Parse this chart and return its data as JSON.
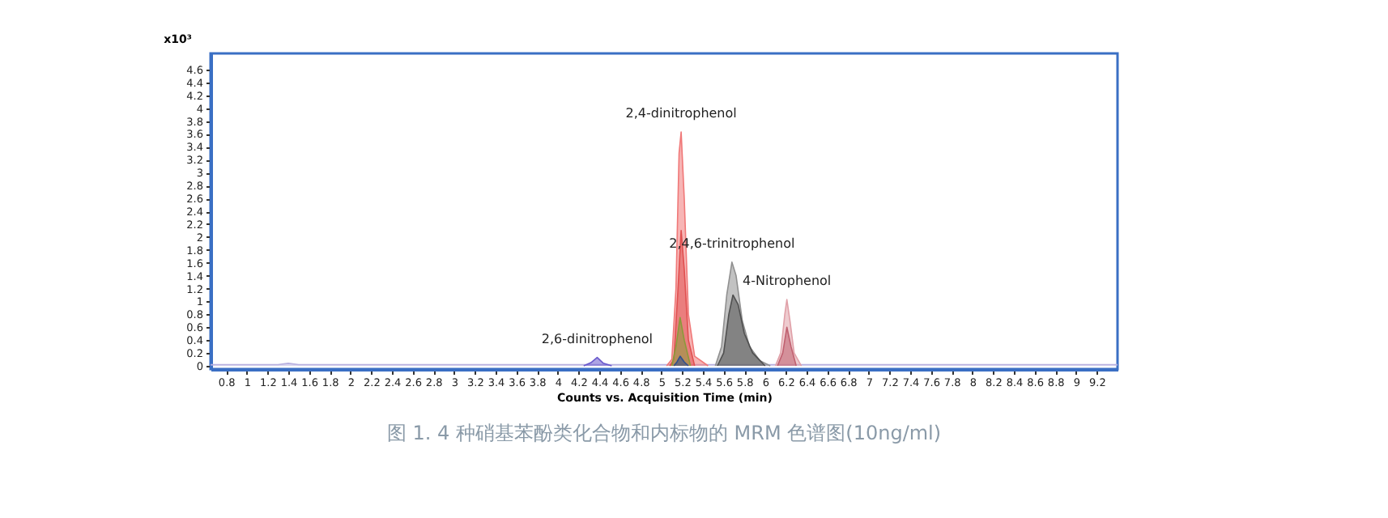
{
  "chart_data": {
    "type": "area",
    "title": "图 1. 4 种硝基苯酚类化合物和内标物的 MRM 色谱图(10ng/ml)",
    "xlabel": "Counts vs. Acquisition Time (min)",
    "ylabel": "x10³",
    "xlim": [
      0.65,
      9.4
    ],
    "xticks": [
      0.8,
      1,
      1.2,
      1.4,
      1.6,
      1.8,
      2,
      2.2,
      2.4,
      2.6,
      2.8,
      3,
      3.2,
      3.4,
      3.6,
      3.8,
      4,
      4.2,
      4.4,
      4.6,
      4.8,
      5,
      5.2,
      5.4,
      5.6,
      5.8,
      6,
      6.2,
      6.4,
      6.6,
      6.8,
      7,
      7.2,
      7.4,
      7.6,
      7.8,
      8,
      8.2,
      8.4,
      8.6,
      8.8,
      9,
      9.2
    ],
    "ylim": [
      -0.05,
      4.85
    ],
    "yticks": [
      0,
      0.2,
      0.4,
      0.6,
      0.8,
      1,
      1.2,
      1.4,
      1.6,
      1.8,
      2,
      2.2,
      2.4,
      2.6,
      2.8,
      3,
      3.2,
      3.4,
      3.6,
      3.8,
      4,
      4.2,
      4.4,
      4.6
    ],
    "grid": false,
    "series": [
      {
        "color": "#b8b0e0",
        "x": [
          0.65,
          1.3,
          1.4,
          1.5,
          4.0,
          6.5,
          9.4
        ],
        "values": [
          0.02,
          0.02,
          0.04,
          0.02,
          0.02,
          0.02,
          0.02
        ]
      },
      {
        "color": "#6a5acd",
        "x": [
          4.25,
          4.32,
          4.38,
          4.44,
          4.52
        ],
        "values": [
          0,
          0.05,
          0.13,
          0.04,
          0
        ]
      },
      {
        "color": "#f07878",
        "x": [
          5.05,
          5.1,
          5.14,
          5.17,
          5.19,
          5.22,
          5.26,
          5.32,
          5.45
        ],
        "values": [
          0,
          0.1,
          1.2,
          3.3,
          3.63,
          2.6,
          0.8,
          0.15,
          0
        ]
      },
      {
        "color": "#e05050",
        "x": [
          5.08,
          5.12,
          5.16,
          5.19,
          5.22,
          5.26,
          5.32
        ],
        "values": [
          0,
          0.1,
          1.2,
          2.1,
          1.5,
          0.4,
          0
        ]
      },
      {
        "color": "#8a9a3a",
        "x": [
          5.1,
          5.14,
          5.18,
          5.22,
          5.28
        ],
        "values": [
          0,
          0.3,
          0.75,
          0.4,
          0
        ]
      },
      {
        "color": "#2f4f8f",
        "x": [
          5.12,
          5.15,
          5.18,
          5.22,
          5.26
        ],
        "values": [
          0,
          0.06,
          0.15,
          0.06,
          0
        ]
      },
      {
        "color": "#909090",
        "x": [
          5.52,
          5.58,
          5.63,
          5.68,
          5.72,
          5.78,
          5.85,
          5.95,
          6.05
        ],
        "values": [
          0,
          0.3,
          1.1,
          1.61,
          1.4,
          0.7,
          0.3,
          0.08,
          0
        ]
      },
      {
        "color": "#505050",
        "x": [
          5.54,
          5.6,
          5.65,
          5.69,
          5.74,
          5.8,
          5.88,
          6.0
        ],
        "values": [
          0,
          0.2,
          0.8,
          1.1,
          0.95,
          0.5,
          0.2,
          0
        ]
      },
      {
        "color": "#e0a0a8",
        "x": [
          6.1,
          6.15,
          6.19,
          6.21,
          6.24,
          6.28,
          6.35
        ],
        "values": [
          0,
          0.2,
          0.8,
          1.03,
          0.7,
          0.2,
          0
        ]
      },
      {
        "color": "#c06070",
        "x": [
          6.12,
          6.17,
          6.21,
          6.25,
          6.3
        ],
        "values": [
          0,
          0.2,
          0.6,
          0.3,
          0
        ]
      }
    ],
    "annotations": [
      {
        "text": "2,6-dinitrophenol",
        "x": 4.38,
        "y": 0.13
      },
      {
        "text": "2,4-dinitrophenol",
        "x": 5.19,
        "y": 3.63
      },
      {
        "text": "2,4,6-trinitrophenol",
        "x": 5.68,
        "y": 1.61
      },
      {
        "text": "4-Nitrophenol",
        "x": 6.21,
        "y": 1.03
      }
    ]
  }
}
